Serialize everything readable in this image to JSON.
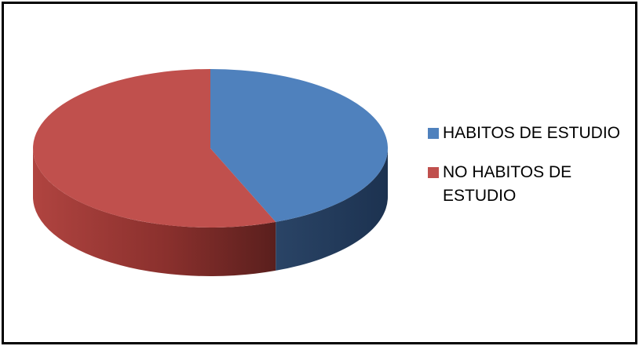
{
  "chart_data": {
    "type": "pie",
    "style": "3d",
    "title": "",
    "legend_position": "right",
    "slices": [
      {
        "label": "HABITOS DE ESTUDIO",
        "value": 44,
        "color": "#4f81bd"
      },
      {
        "label": "NO HABITOS DE ESTUDIO",
        "value": 56,
        "color": "#c0504d"
      }
    ]
  },
  "legend": {
    "item0": "HABITOS DE ESTUDIO",
    "item1_line1": "NO HABITOS DE",
    "item1_line2": "ESTUDIO"
  }
}
